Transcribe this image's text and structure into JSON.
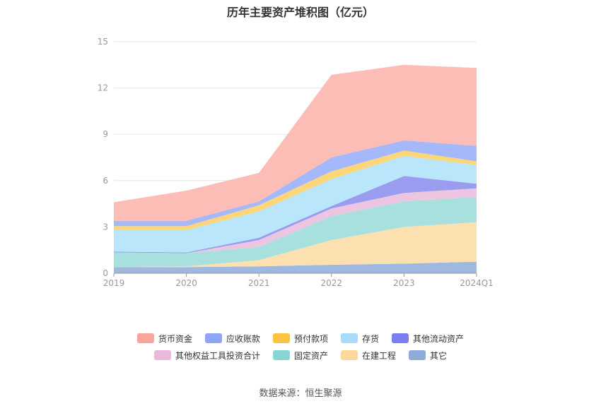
{
  "title": "历年主要资产堆积图（亿元）",
  "source": "数据来源：恒生聚源",
  "chart_data": {
    "type": "area",
    "stacked": true,
    "categories": [
      "2019",
      "2020",
      "2021",
      "2022",
      "2023",
      "2024Q1"
    ],
    "ylim": [
      0,
      15
    ],
    "yticks": [
      "0",
      "3",
      "6",
      "9",
      "12",
      "15"
    ],
    "grid": true,
    "legend_position": "bottom",
    "series": [
      {
        "name": "其它",
        "color": "#9fb8e0",
        "values": [
          0.4,
          0.4,
          0.45,
          0.55,
          0.62,
          0.75
        ]
      },
      {
        "name": "在建工程",
        "color": "#fde0b0",
        "values": [
          0.0,
          0.05,
          0.4,
          1.6,
          2.38,
          2.55
        ]
      },
      {
        "name": "固定资产",
        "color": "#a8e0de",
        "values": [
          0.95,
          0.85,
          0.85,
          1.55,
          1.65,
          1.65
        ]
      },
      {
        "name": "其他权益工具投资合计",
        "color": "#ecc6e0",
        "values": [
          0.0,
          0.0,
          0.45,
          0.5,
          0.55,
          0.55
        ]
      },
      {
        "name": "其他流动资产",
        "color": "#9a9cf0",
        "values": [
          0.05,
          0.05,
          0.15,
          0.15,
          1.1,
          0.3
        ]
      },
      {
        "name": "存货",
        "color": "#b9e6fa",
        "values": [
          1.4,
          1.45,
          1.7,
          1.75,
          1.3,
          1.2
        ]
      },
      {
        "name": "预付款项",
        "color": "#fcd679",
        "values": [
          0.25,
          0.25,
          0.4,
          0.5,
          0.35,
          0.25
        ]
      },
      {
        "name": "应收账款",
        "color": "#a4b8fb",
        "values": [
          0.35,
          0.35,
          0.25,
          0.9,
          0.65,
          1.0
        ]
      },
      {
        "name": "货币资金",
        "color": "#fbbdb6",
        "values": [
          1.2,
          1.95,
          1.85,
          5.35,
          4.9,
          5.05
        ]
      }
    ],
    "legend_rows": [
      [
        {
          "name": "货币资金",
          "color": "#f9a59c"
        },
        {
          "name": "应收账款",
          "color": "#8ea5f7"
        },
        {
          "name": "预付款项",
          "color": "#fbc440"
        },
        {
          "name": "存货",
          "color": "#a9dcfa"
        },
        {
          "name": "其他流动资产",
          "color": "#7b7ef0"
        }
      ],
      [
        {
          "name": "其他权益工具投资合计",
          "color": "#ebb7da"
        },
        {
          "name": "固定资产",
          "color": "#88d6d4"
        },
        {
          "name": "在建工程",
          "color": "#fdd89a"
        },
        {
          "name": "其它",
          "color": "#8fa9d8"
        }
      ]
    ]
  }
}
